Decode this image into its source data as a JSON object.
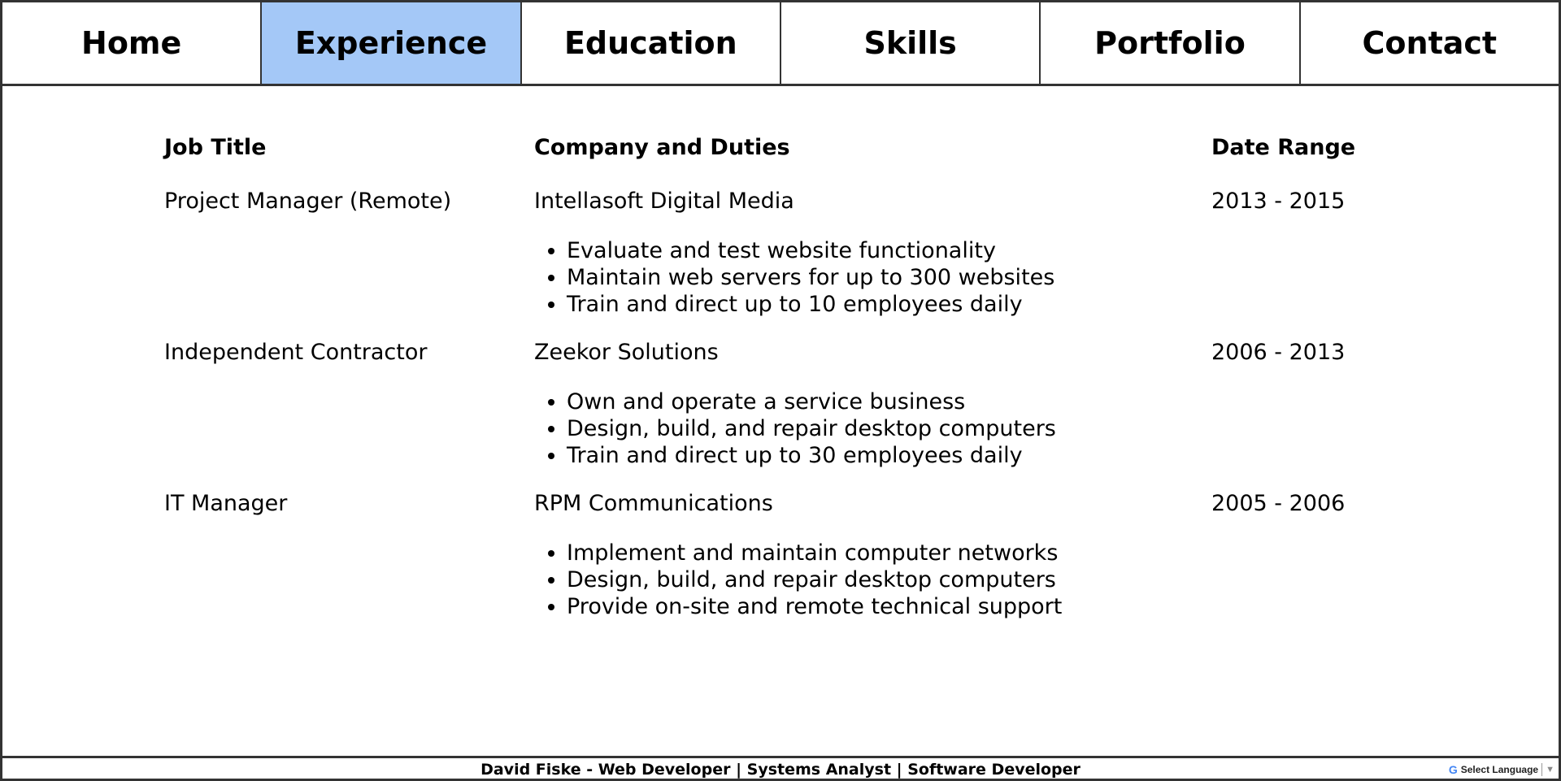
{
  "nav": {
    "tabs": [
      {
        "label": "Home"
      },
      {
        "label": "Experience"
      },
      {
        "label": "Education"
      },
      {
        "label": "Skills"
      },
      {
        "label": "Portfolio"
      },
      {
        "label": "Contact"
      }
    ],
    "active": "Experience"
  },
  "table": {
    "headers": {
      "job": "Job Title",
      "company": "Company and Duties",
      "date": "Date Range"
    },
    "rows": [
      {
        "job": "Project Manager (Remote)",
        "company": "Intellasoft Digital Media",
        "date": "2013 - 2015",
        "duties": [
          "Evaluate and test website functionality",
          "Maintain web servers for up to 300 websites",
          "Train and direct up to 10 employees daily"
        ]
      },
      {
        "job": "Independent Contractor",
        "company": "Zeekor Solutions",
        "date": "2006 - 2013",
        "duties": [
          "Own and operate a service business",
          "Design, build, and repair desktop computers",
          "Train and direct up to 30 employees daily"
        ]
      },
      {
        "job": "IT Manager",
        "company": "RPM Communications",
        "date": "2005 - 2006",
        "duties": [
          "Implement and maintain computer networks",
          "Design, build, and repair desktop computers",
          "Provide on-site and remote technical support"
        ]
      }
    ]
  },
  "footer": {
    "text": "David Fiske - Web Developer | Systems Analyst | Software Developer"
  },
  "translate": {
    "label": "Select Language",
    "icon": "google-g-icon",
    "arrow": "▼"
  },
  "colors": {
    "active_tab": "#a4c8f7",
    "border": "#333333"
  }
}
